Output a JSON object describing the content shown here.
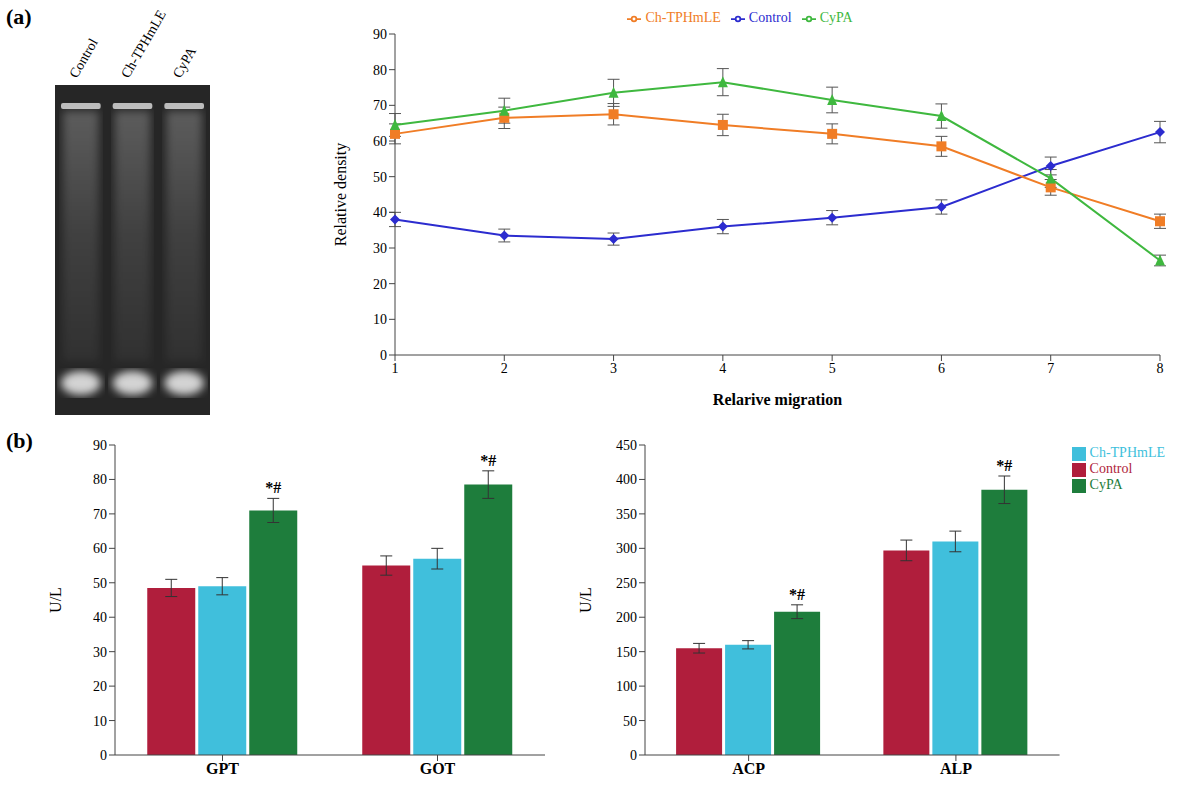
{
  "panel_labels": [
    "(a)",
    "(b)"
  ],
  "gel": {
    "lane_labels": [
      "Control",
      "Ch-TPHmLE",
      "CyPA"
    ]
  },
  "chart_data": [
    {
      "type": "line",
      "x_label": "Relarive migration",
      "y_label": "Relative density",
      "categories": [
        "1",
        "2",
        "3",
        "4",
        "5",
        "6",
        "7",
        "8"
      ],
      "ylim": [
        0,
        90
      ],
      "yticks": [
        0,
        10,
        20,
        30,
        40,
        50,
        60,
        70,
        80,
        90
      ],
      "legend": "top",
      "series": [
        {
          "name": "Control",
          "color": "#2c2ccf",
          "marker": "diamond",
          "values": [
            38,
            33.5,
            32.5,
            36,
            38.5,
            41.5,
            53,
            62.5
          ],
          "errors": [
            2,
            1.8,
            1.7,
            2,
            2,
            2,
            2.5,
            3
          ]
        },
        {
          "name": "Ch-TPHmLE",
          "color": "#f07d26",
          "marker": "square",
          "values": [
            62,
            66.5,
            67.5,
            64.5,
            62,
            58.5,
            47,
            37.5
          ],
          "errors": [
            2.8,
            3,
            3,
            3,
            2.8,
            2.8,
            2.2,
            2
          ]
        },
        {
          "name": "CyPA",
          "color": "#3fb83f",
          "marker": "triangle",
          "values": [
            64.5,
            68.5,
            73.5,
            76.5,
            71.5,
            67,
            49.5,
            26.5
          ],
          "errors": [
            3.2,
            3.5,
            3.8,
            3.8,
            3.6,
            3.4,
            2.5,
            1.5
          ]
        }
      ]
    },
    {
      "type": "bar",
      "y_label": "U/L",
      "categories": [
        "GPT",
        "GOT"
      ],
      "ylim": [
        0,
        90
      ],
      "yticks": [
        0,
        10,
        20,
        30,
        40,
        50,
        60,
        70,
        80,
        90
      ],
      "series": [
        {
          "name": "Control",
          "color": "#b01e3c",
          "values": [
            48.5,
            55
          ],
          "errors": [
            2.5,
            2.8
          ]
        },
        {
          "name": "Ch-TPHmLE",
          "color": "#40bfdc",
          "values": [
            49,
            57
          ],
          "errors": [
            2.5,
            3
          ]
        },
        {
          "name": "CyPA",
          "color": "#1e7d3c",
          "values": [
            71,
            78.5
          ],
          "errors": [
            3.5,
            4
          ]
        }
      ],
      "annotations": [
        {
          "series": "CyPA",
          "category": "GPT",
          "text": "*#"
        },
        {
          "series": "CyPA",
          "category": "GOT",
          "text": "*#"
        }
      ]
    },
    {
      "type": "bar",
      "y_label": "U/L",
      "categories": [
        "ACP",
        "ALP"
      ],
      "ylim": [
        0,
        450
      ],
      "yticks": [
        0,
        50,
        100,
        150,
        200,
        250,
        300,
        350,
        400,
        450
      ],
      "legend": "right",
      "series": [
        {
          "name": "Control",
          "color": "#b01e3c",
          "values": [
            155,
            297
          ],
          "errors": [
            7,
            15
          ]
        },
        {
          "name": "Ch-TPHmLE",
          "color": "#40bfdc",
          "values": [
            160,
            310
          ],
          "errors": [
            6,
            15
          ]
        },
        {
          "name": "CyPA",
          "color": "#1e7d3c",
          "values": [
            208,
            385
          ],
          "errors": [
            10,
            20
          ]
        }
      ],
      "annotations": [
        {
          "series": "CyPA",
          "category": "ACP",
          "text": "*#"
        },
        {
          "series": "CyPA",
          "category": "ALP",
          "text": "*#"
        }
      ]
    }
  ]
}
